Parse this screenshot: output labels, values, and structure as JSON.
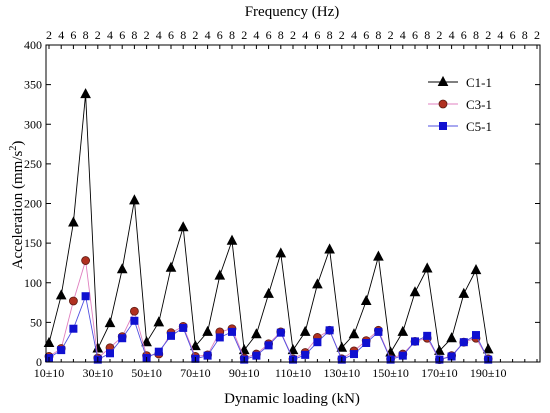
{
  "chart_data": {
    "type": "line",
    "xlabel": "Dynamic loading (kN)",
    "ylabel": "Acceleration (mm/s",
    "ylabel_sup": "2",
    "ylabel_close": ")",
    "top_axis_label": "Frequency (Hz)",
    "top_ticks": [
      "2",
      "4",
      "6",
      "8",
      "2",
      "4",
      "6",
      "8",
      "2",
      "4",
      "6",
      "8",
      "2",
      "4",
      "6",
      "8",
      "2",
      "4",
      "6",
      "8",
      "2",
      "4",
      "6",
      "8",
      "2",
      "4",
      "6",
      "8",
      "2",
      "4",
      "6",
      "8",
      "2",
      "4",
      "6",
      "8",
      "2",
      "4",
      "6",
      "8",
      "2"
    ],
    "x_ticks": [
      "10±10",
      "30±10",
      "50±10",
      "70±10",
      "90±10",
      "110±10",
      "130±10",
      "150±10",
      "170±10",
      "190±10"
    ],
    "x_tick_positions": [
      0,
      4,
      8,
      12,
      16,
      20,
      24,
      28,
      32,
      36
    ],
    "ylim": [
      0,
      400
    ],
    "y_ticks": [
      0,
      50,
      100,
      150,
      200,
      250,
      300,
      350,
      400
    ],
    "x_count": 41,
    "legend_position": "top-right",
    "series": [
      {
        "name": "C1-1",
        "marker": "triangle",
        "color": "#000000",
        "values": [
          24,
          84,
          176,
          338,
          17,
          49,
          117,
          204,
          25,
          50,
          119,
          170,
          20,
          38,
          109,
          153,
          15,
          35,
          86,
          137,
          15,
          38,
          98,
          142,
          18,
          35,
          77,
          133,
          12,
          38,
          88,
          118,
          14,
          30,
          86,
          116,
          16
        ]
      },
      {
        "name": "C3-1",
        "marker": "circle",
        "color": "#b03020",
        "values": [
          7,
          17,
          77,
          128,
          5,
          18,
          32,
          64,
          8,
          10,
          37,
          45,
          7,
          9,
          38,
          42,
          5,
          10,
          23,
          38,
          4,
          12,
          31,
          40,
          4,
          14,
          27,
          40,
          4,
          10,
          26,
          30,
          3,
          8,
          25,
          30,
          4
        ]
      },
      {
        "name": "C5-1",
        "marker": "square",
        "color": "#1010d0",
        "values": [
          5,
          15,
          42,
          83,
          3,
          11,
          30,
          52,
          5,
          13,
          33,
          43,
          4,
          8,
          31,
          38,
          3,
          8,
          21,
          37,
          3,
          9,
          25,
          40,
          3,
          10,
          24,
          38,
          3,
          8,
          26,
          33,
          3,
          7,
          25,
          34,
          3
        ]
      }
    ]
  }
}
